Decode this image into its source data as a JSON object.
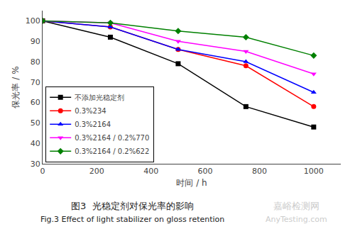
{
  "chart_data": {
    "type": "line",
    "title": "图3  光稳定剂对保光率的影响",
    "subtitle": "Fig.3 Effect of light stabilizer on gloss retention",
    "annotations": [
      "嘉峪检测网",
      "AnyTesting.com"
    ],
    "x_label": "时间 / h",
    "y_label": "保光率 / %",
    "x": [
      0,
      250,
      500,
      750,
      1000
    ],
    "series": [
      {
        "name": "不添加光稳定剂",
        "color": "#000000",
        "marker": "square",
        "values": [
          100,
          92,
          79,
          58,
          48
        ]
      },
      {
        "name": "0.3%234",
        "color": "#ff0000",
        "marker": "circle",
        "values": [
          100,
          97,
          86,
          78,
          58
        ]
      },
      {
        "name": "0.3%2164",
        "color": "#0000ff",
        "marker": "triangle-up",
        "values": [
          100,
          97,
          86,
          80,
          65
        ]
      },
      {
        "name": "0.3%2164 / 0.2%770",
        "color": "#ff00ff",
        "marker": "triangle-down",
        "values": [
          100,
          99,
          90,
          85,
          74
        ]
      },
      {
        "name": "0.3%2164 / 0.2%622",
        "color": "#008000",
        "marker": "diamond",
        "values": [
          100,
          99,
          95,
          92,
          83
        ]
      }
    ],
    "xlim": [
      0,
      1100
    ],
    "ylim": [
      30,
      105
    ],
    "xticks": [
      0,
      200,
      400,
      600,
      800,
      1000
    ],
    "yticks": [
      30,
      40,
      50,
      60,
      70,
      80,
      90,
      100
    ],
    "grid": false,
    "legend": "lower left"
  }
}
